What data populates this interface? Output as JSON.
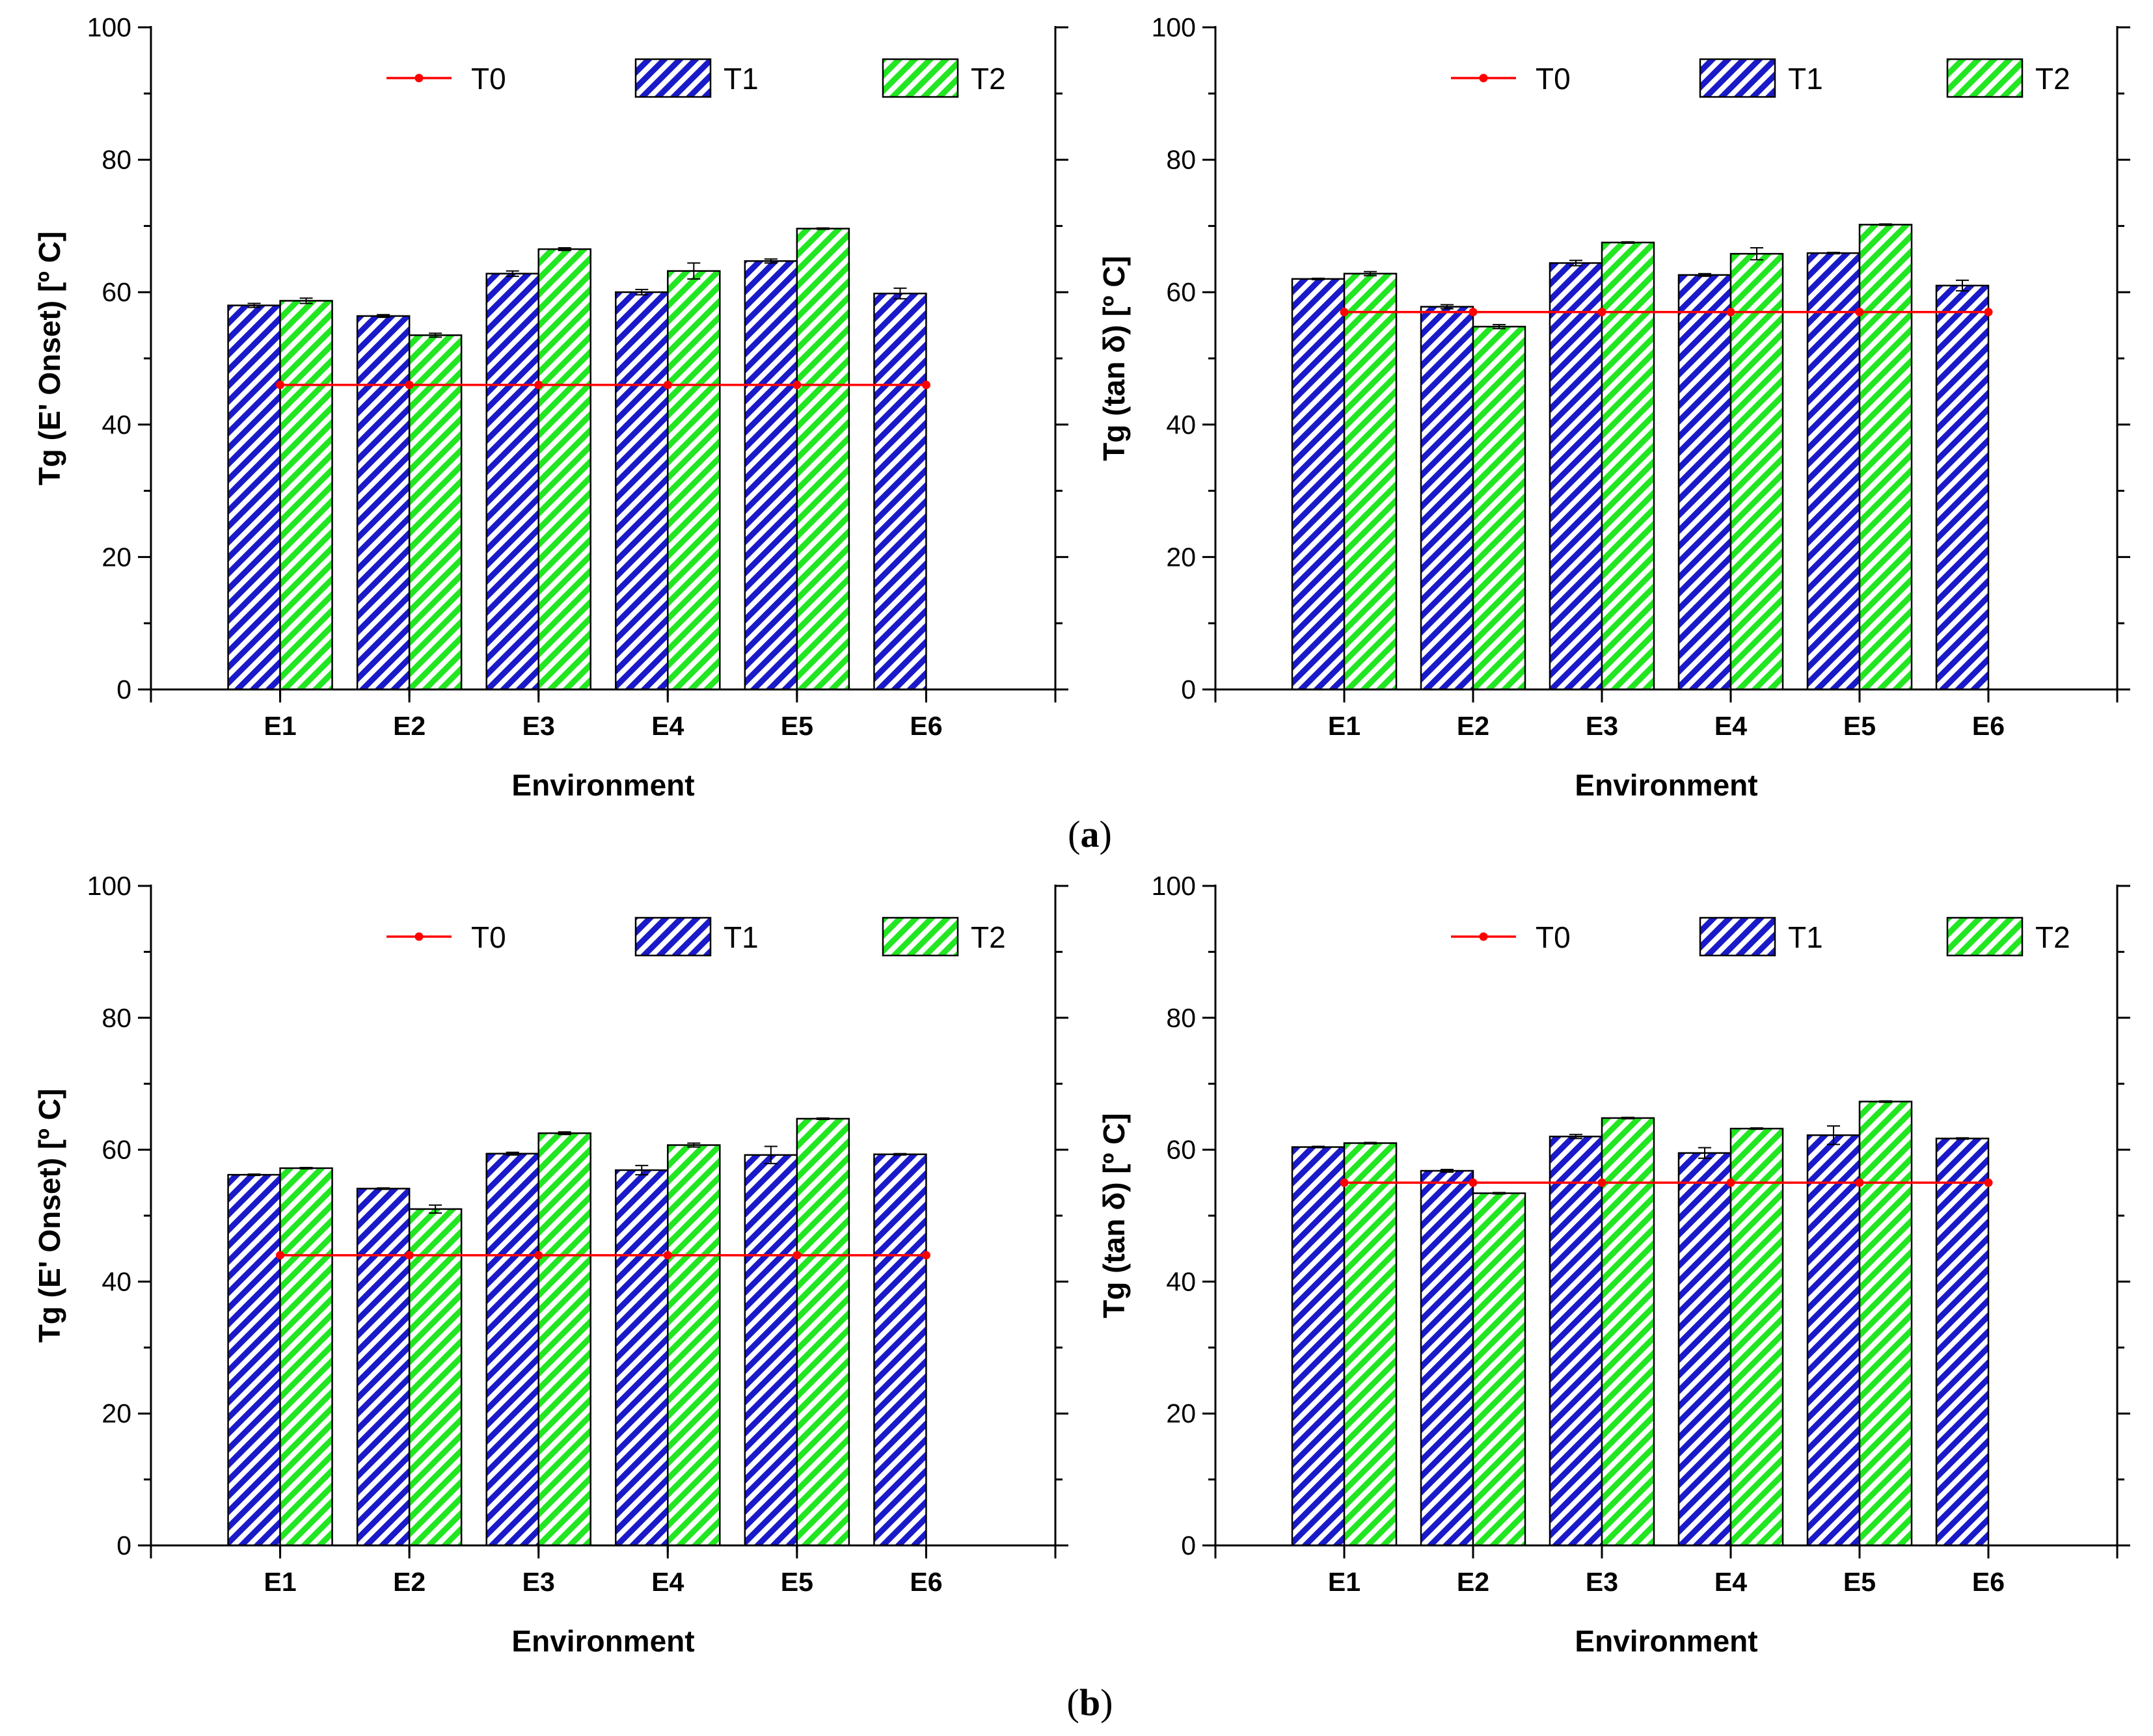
{
  "colors": {
    "t0": "#ff0000",
    "t1_stripe": "#1a1ac8",
    "t2_stripe": "#22e622",
    "axis": "#000000",
    "background": "#ffffff"
  },
  "legend": {
    "t0": "T0",
    "t1": "T1",
    "t2": "T2",
    "position": "top"
  },
  "panels": [
    {
      "label_open": "(",
      "label_letter": "a",
      "label_close": ")",
      "caption_text": "(a)"
    },
    {
      "label_open": "(",
      "label_letter": "b",
      "label_close": ")",
      "caption_text": "(b)"
    }
  ],
  "chart_data": [
    {
      "type": "bar",
      "panel": "a-left",
      "xlabel": "Environment",
      "ylabel": "Tg (E' Onset) [º C]",
      "ylim": [
        0,
        100
      ],
      "yticks": [
        0,
        20,
        40,
        60,
        80,
        100
      ],
      "categories": [
        "E1",
        "E2",
        "E3",
        "E4",
        "E5",
        "E6"
      ],
      "series": [
        {
          "name": "T1",
          "kind": "bar",
          "values": [
            58.0,
            56.4,
            62.8,
            60.0,
            64.7,
            59.8
          ],
          "errors": [
            0.3,
            0.2,
            0.4,
            0.4,
            0.3,
            0.8
          ]
        },
        {
          "name": "T2",
          "kind": "bar",
          "values": [
            58.7,
            53.5,
            66.5,
            63.2,
            69.6,
            null
          ],
          "errors": [
            0.4,
            0.3,
            0.2,
            1.2,
            0.1,
            null
          ]
        },
        {
          "name": "T0",
          "kind": "line",
          "values": [
            46,
            46,
            46,
            46,
            46,
            46
          ]
        }
      ]
    },
    {
      "type": "bar",
      "panel": "a-right",
      "xlabel": "Environment",
      "ylabel": "Tg (tan δ) [º C]",
      "ylim": [
        0,
        100
      ],
      "yticks": [
        0,
        20,
        40,
        60,
        80,
        100
      ],
      "categories": [
        "E1",
        "E2",
        "E3",
        "E4",
        "E5",
        "E6"
      ],
      "series": [
        {
          "name": "T1",
          "kind": "bar",
          "values": [
            62.0,
            57.8,
            64.4,
            62.6,
            65.9,
            61.0
          ],
          "errors": [
            0.1,
            0.3,
            0.4,
            0.2,
            0.1,
            0.8
          ]
        },
        {
          "name": "T2",
          "kind": "bar",
          "values": [
            62.8,
            54.8,
            67.5,
            65.8,
            70.2,
            null
          ],
          "errors": [
            0.3,
            0.3,
            0.1,
            0.9,
            0.1,
            null
          ]
        },
        {
          "name": "T0",
          "kind": "line",
          "values": [
            57,
            57,
            57,
            57,
            57,
            57
          ]
        }
      ]
    },
    {
      "type": "bar",
      "panel": "b-left",
      "xlabel": "Environment",
      "ylabel": "Tg (E' Onset) [º C]",
      "ylim": [
        0,
        100
      ],
      "yticks": [
        0,
        20,
        40,
        60,
        80,
        100
      ],
      "categories": [
        "E1",
        "E2",
        "E3",
        "E4",
        "E5",
        "E6"
      ],
      "series": [
        {
          "name": "T1",
          "kind": "bar",
          "values": [
            56.2,
            54.1,
            59.4,
            56.9,
            59.2,
            59.3
          ],
          "errors": [
            0.1,
            0.1,
            0.2,
            0.7,
            1.3,
            0.1
          ]
        },
        {
          "name": "T2",
          "kind": "bar",
          "values": [
            57.2,
            51.0,
            62.5,
            60.7,
            64.7,
            null
          ],
          "errors": [
            0.1,
            0.6,
            0.2,
            0.3,
            0.1,
            null
          ]
        },
        {
          "name": "T0",
          "kind": "line",
          "values": [
            44,
            44,
            44,
            44,
            44,
            44
          ]
        }
      ]
    },
    {
      "type": "bar",
      "panel": "b-right",
      "xlabel": "Environment",
      "ylabel": "Tg (tan δ) [º C]",
      "ylim": [
        0,
        100
      ],
      "yticks": [
        0,
        20,
        40,
        60,
        80,
        100
      ],
      "categories": [
        "E1",
        "E2",
        "E3",
        "E4",
        "E5",
        "E6"
      ],
      "series": [
        {
          "name": "T1",
          "kind": "bar",
          "values": [
            60.4,
            56.8,
            62.0,
            59.5,
            62.2,
            61.7
          ],
          "errors": [
            0.1,
            0.2,
            0.3,
            0.8,
            1.4,
            0.1
          ]
        },
        {
          "name": "T2",
          "kind": "bar",
          "values": [
            61.0,
            53.4,
            64.8,
            63.2,
            67.3,
            null
          ],
          "errors": [
            0.1,
            0.1,
            0.1,
            0.1,
            0.1,
            null
          ]
        },
        {
          "name": "T0",
          "kind": "line",
          "values": [
            55,
            55,
            55,
            55,
            55,
            55
          ]
        }
      ]
    }
  ]
}
